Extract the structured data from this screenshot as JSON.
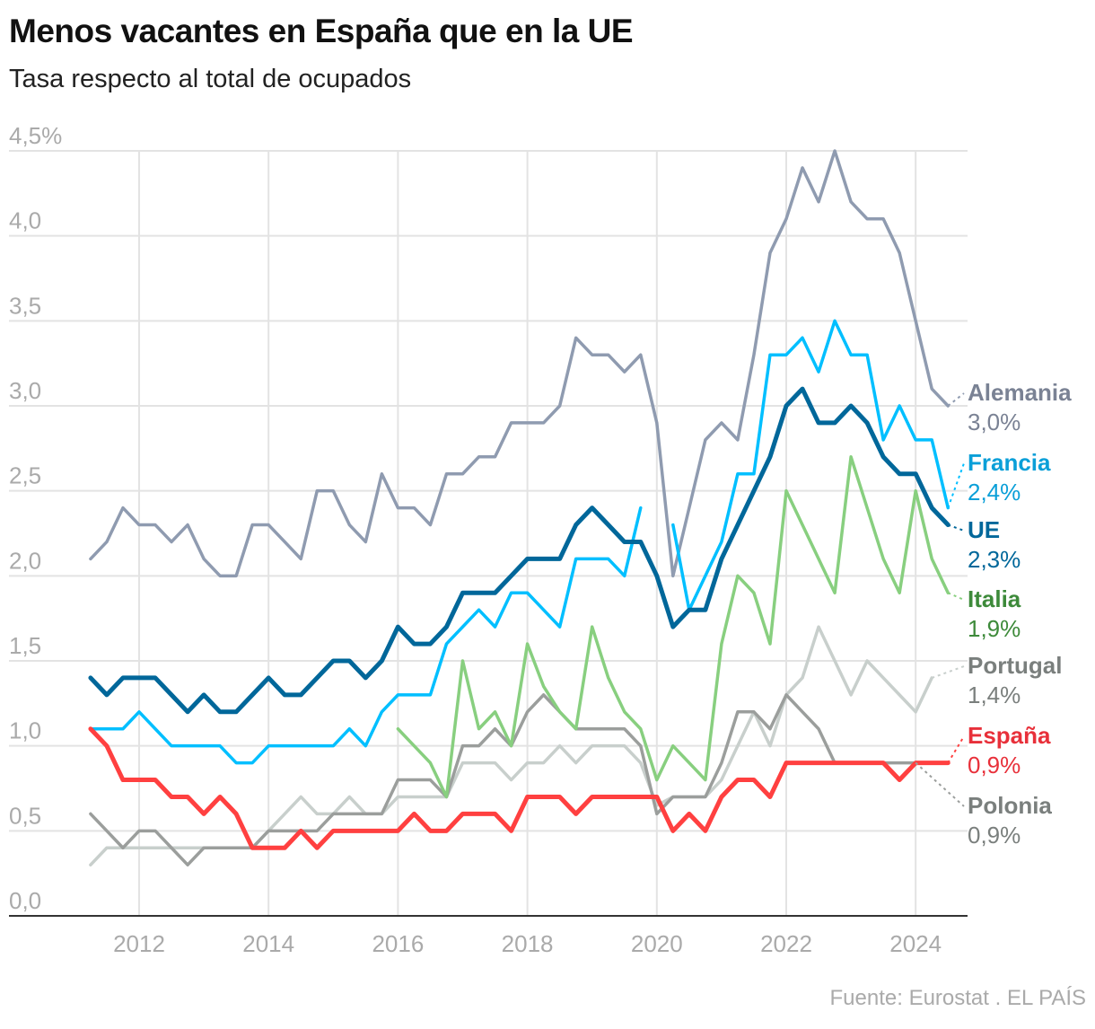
{
  "title": "Menos vacantes en España que en la UE",
  "subtitle": "Tasa respecto al total de ocupados",
  "source": "Fuente: Eurostat . EL PAÍS",
  "chart_data": {
    "type": "line",
    "title": "Menos vacantes en España que en la UE",
    "subtitle": "Tasa respecto al total de ocupados",
    "xlabel": "",
    "ylabel": "",
    "ylim": [
      0,
      4.5
    ],
    "xlim": [
      2011,
      2024.75
    ],
    "yticks": [
      0,
      0.5,
      1,
      1.5,
      2,
      2.5,
      3,
      3.5,
      4,
      4.5
    ],
    "ytick_labels": [
      "0,0",
      "0,5",
      "1,0",
      "1,5",
      "2,0",
      "2,5",
      "3,0",
      "3,5",
      "4,0",
      "4,5%"
    ],
    "xticks": [
      2012,
      2014,
      2016,
      2018,
      2020,
      2022,
      2024
    ],
    "xtick_labels": [
      "2012",
      "2014",
      "2016",
      "2018",
      "2020",
      "2022",
      "2024"
    ],
    "grid": true,
    "x_start": 2011.25,
    "x_step": 0.25,
    "series": [
      {
        "name": "Alemania",
        "value_label": "3,0%",
        "color": "#8f9bb0",
        "label_color": "#7a8294",
        "width": 3.5,
        "values": [
          2.1,
          2.2,
          2.4,
          2.3,
          2.3,
          2.2,
          2.3,
          2.1,
          2.0,
          2.0,
          2.3,
          2.3,
          2.2,
          2.1,
          2.5,
          2.5,
          2.3,
          2.2,
          2.6,
          2.4,
          2.4,
          2.3,
          2.6,
          2.6,
          2.7,
          2.7,
          2.9,
          2.9,
          2.9,
          3.0,
          3.4,
          3.3,
          3.3,
          3.2,
          3.3,
          2.9,
          2.0,
          2.4,
          2.8,
          2.9,
          2.8,
          3.3,
          3.9,
          4.1,
          4.4,
          4.2,
          4.5,
          4.2,
          4.1,
          4.1,
          3.9,
          3.5,
          3.1,
          3.0
        ]
      },
      {
        "name": "Portugal",
        "value_label": "1,4%",
        "color": "#c8cfcc",
        "label_color": "#7a7f7d",
        "width": 3.5,
        "values": [
          0.3,
          0.4,
          0.4,
          0.4,
          0.4,
          0.4,
          0.4,
          0.4,
          0.4,
          0.4,
          0.4,
          0.5,
          0.6,
          0.7,
          0.6,
          0.6,
          0.7,
          0.6,
          0.6,
          0.7,
          0.7,
          0.7,
          0.7,
          0.9,
          0.9,
          0.9,
          0.8,
          0.9,
          0.9,
          1.0,
          0.9,
          1.0,
          1.0,
          1.0,
          0.9,
          0.65,
          0.7,
          0.7,
          0.7,
          0.8,
          1.0,
          1.2,
          1.0,
          1.3,
          1.4,
          1.7,
          1.5,
          1.3,
          1.5,
          1.4,
          1.3,
          1.2,
          1.4,
          null
        ]
      },
      {
        "name": "Polonia",
        "value_label": "0,9%",
        "color": "#9b9e9c",
        "label_color": "#7a7f7d",
        "width": 3.5,
        "values": [
          0.6,
          0.5,
          0.4,
          0.5,
          0.5,
          0.4,
          0.3,
          0.4,
          0.4,
          0.4,
          0.4,
          0.5,
          0.5,
          0.5,
          0.5,
          0.6,
          0.6,
          0.6,
          0.6,
          0.8,
          0.8,
          0.8,
          0.7,
          1.0,
          1.0,
          1.1,
          1.0,
          1.2,
          1.3,
          1.2,
          1.1,
          1.1,
          1.1,
          1.1,
          1.0,
          0.6,
          0.7,
          0.7,
          0.7,
          0.9,
          1.2,
          1.2,
          1.1,
          1.3,
          1.2,
          1.1,
          0.9,
          0.9,
          0.9,
          0.9,
          0.9,
          0.9,
          null,
          null
        ]
      },
      {
        "name": "Italia",
        "value_label": "1,9%",
        "color": "#88cf7f",
        "label_color": "#3d8a3a",
        "width": 3.5,
        "values": [
          null,
          null,
          null,
          null,
          null,
          null,
          null,
          null,
          null,
          null,
          null,
          null,
          null,
          null,
          null,
          null,
          null,
          null,
          null,
          1.1,
          1.0,
          0.9,
          0.7,
          1.5,
          1.1,
          1.2,
          1.0,
          1.6,
          1.35,
          1.2,
          1.1,
          1.7,
          1.4,
          1.2,
          1.1,
          0.8,
          1.0,
          0.9,
          0.8,
          1.6,
          2.0,
          1.9,
          1.6,
          2.5,
          2.3,
          2.1,
          1.9,
          2.7,
          2.4,
          2.1,
          1.9,
          2.5,
          2.1,
          1.9
        ]
      },
      {
        "name": "Francia",
        "value_label": "2,4%",
        "color": "#00bfff",
        "label_color": "#0a9fd8",
        "width": 3.5,
        "values": [
          1.1,
          1.1,
          1.1,
          1.2,
          1.1,
          1.0,
          1.0,
          1.0,
          1.0,
          0.9,
          0.9,
          1.0,
          1.0,
          1.0,
          1.0,
          1.0,
          1.1,
          1.0,
          1.2,
          1.3,
          1.3,
          1.3,
          1.6,
          1.7,
          1.8,
          1.7,
          1.9,
          1.9,
          1.8,
          1.7,
          2.1,
          2.1,
          2.1,
          2.0,
          2.4,
          null,
          2.3,
          1.8,
          2.0,
          2.2,
          2.6,
          2.6,
          3.3,
          3.3,
          3.4,
          3.2,
          3.5,
          3.3,
          3.3,
          2.8,
          3.0,
          2.8,
          2.8,
          2.4
        ]
      },
      {
        "name": "UE",
        "value_label": "2,3%",
        "color": "#00679a",
        "label_color": "#00679a",
        "width": 5,
        "values": [
          1.4,
          1.3,
          1.4,
          1.4,
          1.4,
          1.3,
          1.2,
          1.3,
          1.2,
          1.2,
          1.3,
          1.4,
          1.3,
          1.3,
          1.4,
          1.5,
          1.5,
          1.4,
          1.5,
          1.7,
          1.6,
          1.6,
          1.7,
          1.9,
          1.9,
          1.9,
          2.0,
          2.1,
          2.1,
          2.1,
          2.3,
          2.4,
          2.3,
          2.2,
          2.2,
          2.0,
          1.7,
          1.8,
          1.8,
          2.1,
          2.3,
          2.5,
          2.7,
          3.0,
          3.1,
          2.9,
          2.9,
          3.0,
          2.9,
          2.7,
          2.6,
          2.6,
          2.4,
          2.3
        ]
      },
      {
        "name": "España",
        "value_label": "0,9%",
        "color": "#ff4040",
        "label_color": "#e8303a",
        "width": 5,
        "values": [
          1.1,
          1.0,
          0.8,
          0.8,
          0.8,
          0.7,
          0.7,
          0.6,
          0.7,
          0.6,
          0.4,
          0.4,
          0.4,
          0.5,
          0.4,
          0.5,
          0.5,
          0.5,
          0.5,
          0.5,
          0.6,
          0.5,
          0.5,
          0.6,
          0.6,
          0.6,
          0.5,
          0.7,
          0.7,
          0.7,
          0.6,
          0.7,
          0.7,
          0.7,
          0.7,
          0.7,
          0.5,
          0.6,
          0.5,
          0.7,
          0.8,
          0.8,
          0.7,
          0.9,
          0.9,
          0.9,
          0.9,
          0.9,
          0.9,
          0.9,
          0.8,
          0.9,
          0.9,
          0.9
        ]
      }
    ]
  }
}
